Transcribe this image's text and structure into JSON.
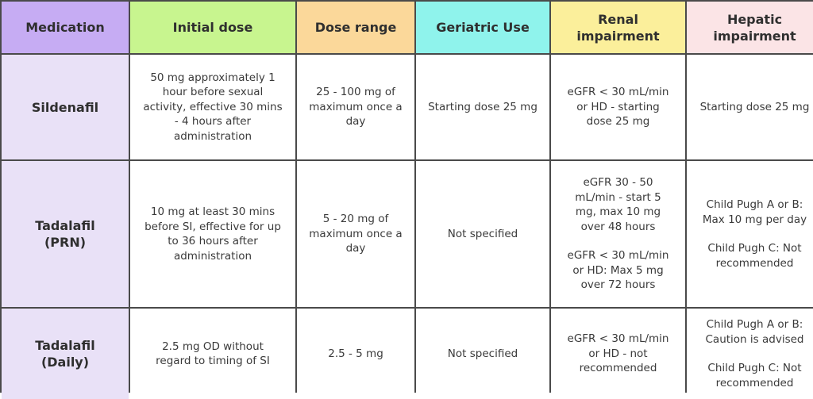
{
  "header": {
    "colors": [
      "#c6acf3",
      "#c8f58f",
      "#fbd89a",
      "#8ff3ec",
      "#fbef9b",
      "#fbe4e6"
    ],
    "labels": [
      "Medication",
      "Initial dose",
      "Dose range",
      "Geriatric Use",
      "Renal impairment",
      "Hepatic impairment"
    ]
  },
  "rows": [
    {
      "medication": "Sildenafil",
      "initial_dose": "50 mg approximately 1 hour before sexual activity, effective 30 mins - 4 hours after administration",
      "dose_range": "25 - 100 mg of maximum once a day",
      "geriatric_use": "Starting dose 25 mg",
      "renal": [
        "eGFR < 30 mL/min or HD - starting dose 25 mg"
      ],
      "hepatic": [
        "Starting dose 25 mg"
      ]
    },
    {
      "medication": "Tadalafil (PRN)",
      "initial_dose": "10 mg at least 30 mins before SI, effective for up to 36 hours after administration",
      "dose_range": "5 - 20 mg of maximum once a day",
      "geriatric_use": "Not specified",
      "renal": [
        "eGFR 30 - 50 mL/min - start 5 mg, max 10 mg over 48 hours",
        "eGFR < 30 mL/min or HD: Max 5 mg over 72 hours"
      ],
      "hepatic": [
        "Child Pugh A or B: Max 10 mg per day",
        "Child Pugh C: Not recommended"
      ]
    },
    {
      "medication": "Tadalafil (Daily)",
      "initial_dose": "2.5 mg OD without regard to timing of SI",
      "dose_range": "2.5 - 5 mg",
      "geriatric_use": "Not specified",
      "renal": [
        "eGFR < 30 mL/min or HD - not recommended"
      ],
      "hepatic": [
        "Child Pugh A or B: Caution is advised",
        "Child Pugh C: Not recommended"
      ]
    }
  ]
}
